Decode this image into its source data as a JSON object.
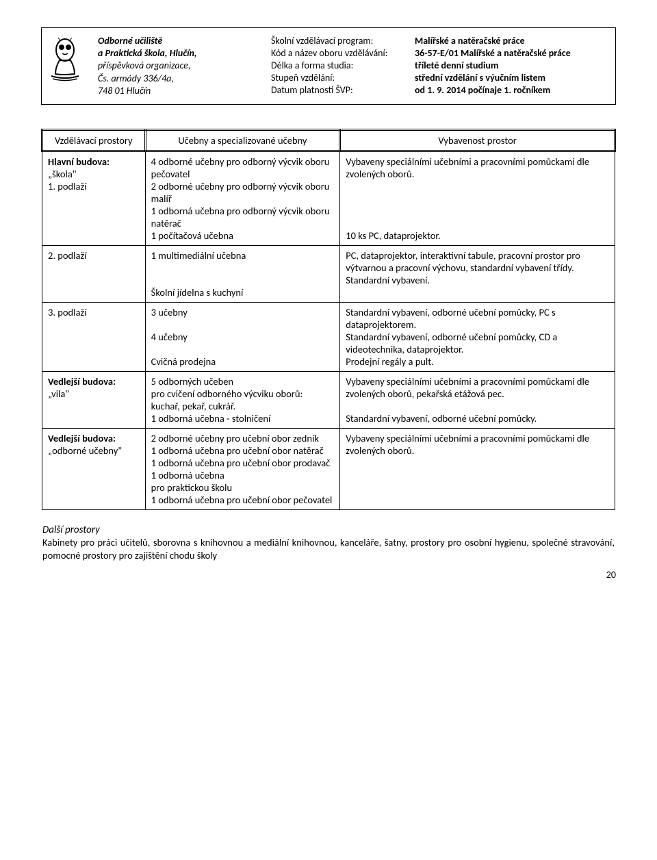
{
  "header": {
    "school": {
      "line1": "Odborné učiliště",
      "line2": "a Praktická škola, Hlučín,",
      "line3": "příspěvková organizace,",
      "line4": "Čs. armády 336/4a,",
      "line5": "748 01 Hlučín"
    },
    "program": [
      {
        "label": "Školní vzdělávací program:",
        "value": "Malířské a natěračské práce"
      },
      {
        "label": "Kód a název oboru vzdělávání:",
        "value": "36-57-E/01  Malířské a natěračské práce"
      },
      {
        "label": "Délka a forma studia:",
        "value": "tříleté denní studium"
      },
      {
        "label": "Stupeň vzdělání:",
        "value": "střední vzdělání s výučním listem"
      },
      {
        "label": "Datum platnosti ŠVP:",
        "value": " od 1. 9. 2014 počínaje 1. ročníkem"
      }
    ]
  },
  "table": {
    "headers": {
      "col1": "Vzdělávací prostory",
      "col2": "Učebny a specializované učebny",
      "col3": "Vybavenost prostor"
    },
    "rows": [
      {
        "col1_html": "<span class='sub-bold'>Hlavní budova:</span><br><span class='sub'>„škola\"<br>1. podlaží</span>",
        "col2": "4 odborné učebny pro odborný výcvik oboru pečovatel\n2 odborné učebny pro odborný výcvik oboru malíř\n1 odborná učebna pro odborný výcvik oboru natěrač\n1 počítačová učebna",
        "col3": "Vybaveny speciálními učebními a pracovními pomůckami dle zvolených oborů.\n\n\n\n\n10 ks PC, dataprojektor."
      },
      {
        "col1_html": "<span class='sub'>2. podlaží</span>",
        "col2": "1 multimediální učebna\n\n\nŠkolní jídelna s kuchyní",
        "col3": "PC, dataprojektor, interaktivní tabule, pracovní prostor pro výtvarnou a pracovní výchovu, standardní vybavení třídy.\nStandardní vybavení."
      },
      {
        "col1_html": "<span class='sub'>3. podlaží</span>",
        "col2": "3 učebny\n\n4 učebny\n\nCvičná prodejna",
        "col3": "Standardní vybavení, odborné učební pomůcky, PC s dataprojektorem.\nStandardní vybavení, odborné učební pomůcky, CD a videotechnika, dataprojektor.\nProdejní regály a pult."
      },
      {
        "col1_html": "<span class='sub-bold'>Vedlejší budova:</span><br><span class='sub'>„vila\"</span>",
        "col2": "5 odborných učeben\npro cvičení odborného výcviku oborů:\nkuchař, pekař, cukrář.\n1 odborná učebna - stolničení",
        "col3": "Vybaveny speciálními učebními a pracovními pomůckami dle zvolených oborů, pekařská etážová pec.\n\nStandardní vybavení, odborné učební pomůcky."
      },
      {
        "col1_html": "<span class='sub-bold'>Vedlejší budova:</span><br><span class='sub'>„odborné učebny\"</span>",
        "col2": "2 odborné učebny pro učební obor zedník\n1 odborná učebna pro učební obor natěrač\n1 odborná učebna pro učební obor prodavač\n1 odborná učebna\npro praktickou školu\n1 odborná učebna pro učební obor pečovatel",
        "col3": "Vybaveny speciálními učebními a pracovními pomůckami dle zvolených oborů."
      }
    ]
  },
  "footer": {
    "title": "Další prostory",
    "text": "Kabinety pro práci učitelů, sborovna s knihovnou a mediální knihovnou, kanceláře, šatny, prostory pro osobní hygienu, společné stravování, pomocné prostory pro zajištění chodu školy"
  },
  "page_number": "20"
}
